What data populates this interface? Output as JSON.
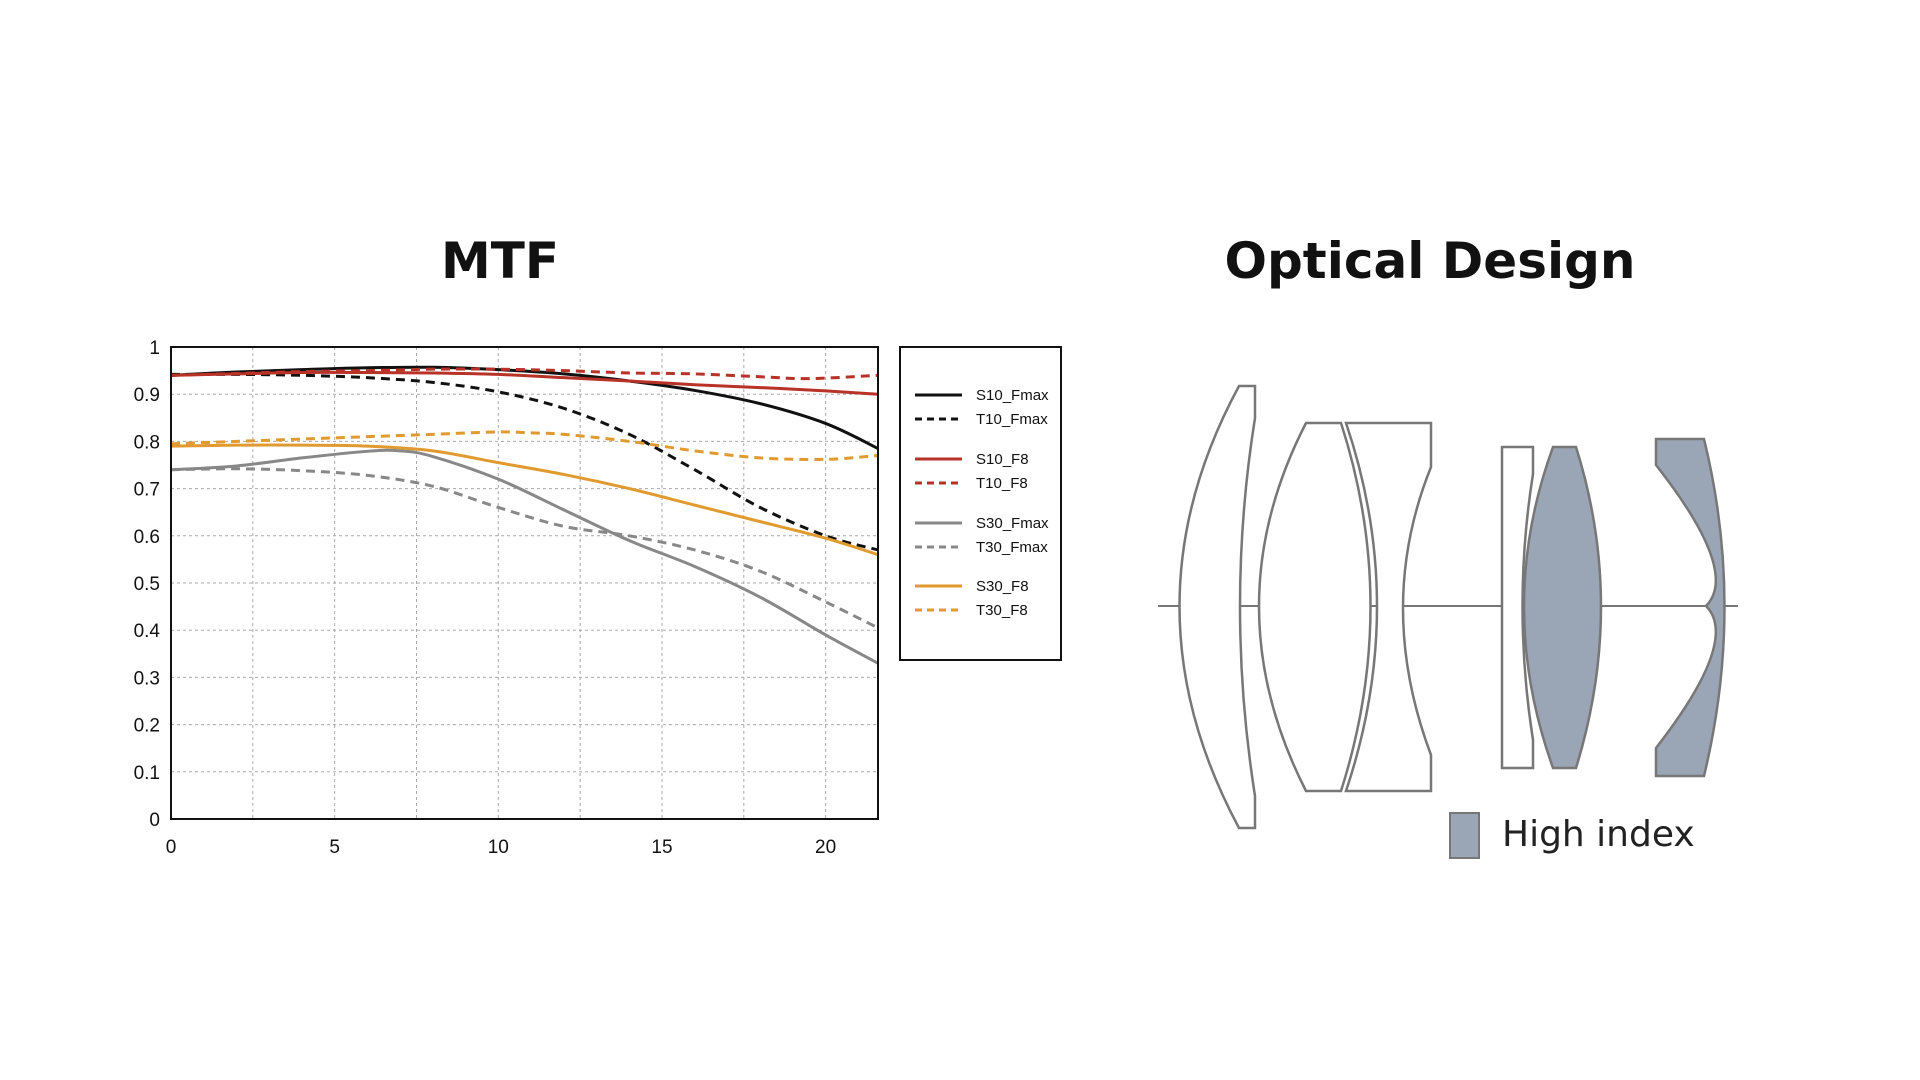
{
  "mtf": {
    "title": "MTF"
  },
  "optical": {
    "title": "Optical Design",
    "legend_label": "High index",
    "high_index_color": "#9aa5b5",
    "outline_color": "#777777"
  },
  "chart_data": {
    "type": "line",
    "title": "MTF",
    "xlabel": "",
    "ylabel": "",
    "xlim": [
      0,
      21.6
    ],
    "ylim": [
      0,
      1
    ],
    "x_ticks": [
      "0",
      "5",
      "10",
      "15",
      "20"
    ],
    "y_ticks": [
      "0",
      "0.1",
      "0.2",
      "0.3",
      "0.4",
      "0.5",
      "0.6",
      "0.7",
      "0.8",
      "0.9",
      "1"
    ],
    "grid": true,
    "legend_position": "right",
    "series": [
      {
        "name": "S10_Fmax",
        "color": "#111111",
        "dashed": false,
        "points": [
          [
            0,
            0.94
          ],
          [
            2,
            0.947
          ],
          [
            4,
            0.952
          ],
          [
            6,
            0.956
          ],
          [
            8,
            0.957
          ],
          [
            10,
            0.952
          ],
          [
            12,
            0.943
          ],
          [
            14,
            0.928
          ],
          [
            16,
            0.908
          ],
          [
            18,
            0.88
          ],
          [
            20,
            0.838
          ],
          [
            21.6,
            0.785
          ]
        ]
      },
      {
        "name": "T10_Fmax",
        "color": "#111111",
        "dashed": true,
        "points": [
          [
            0,
            0.942
          ],
          [
            2,
            0.942
          ],
          [
            4,
            0.94
          ],
          [
            6,
            0.935
          ],
          [
            8,
            0.925
          ],
          [
            10,
            0.905
          ],
          [
            12,
            0.87
          ],
          [
            14,
            0.815
          ],
          [
            16,
            0.74
          ],
          [
            18,
            0.66
          ],
          [
            20,
            0.6
          ],
          [
            21.6,
            0.57
          ]
        ]
      },
      {
        "name": "S10_F8",
        "color": "#b83228",
        "dashed": false,
        "points": [
          [
            0,
            0.94
          ],
          [
            2,
            0.943
          ],
          [
            4,
            0.946
          ],
          [
            6,
            0.946
          ],
          [
            8,
            0.945
          ],
          [
            10,
            0.942
          ],
          [
            12,
            0.935
          ],
          [
            14,
            0.928
          ],
          [
            16,
            0.92
          ],
          [
            18,
            0.914
          ],
          [
            20,
            0.907
          ],
          [
            21.6,
            0.9
          ]
        ]
      },
      {
        "name": "T10_F8",
        "color": "#b83228",
        "dashed": true,
        "points": [
          [
            0,
            0.94
          ],
          [
            2,
            0.944
          ],
          [
            4,
            0.948
          ],
          [
            6,
            0.95
          ],
          [
            8,
            0.953
          ],
          [
            10,
            0.953
          ],
          [
            12,
            0.95
          ],
          [
            14,
            0.945
          ],
          [
            16,
            0.943
          ],
          [
            18,
            0.937
          ],
          [
            19.5,
            0.933
          ],
          [
            21.6,
            0.94
          ]
        ]
      },
      {
        "name": "S30_Fmax",
        "color": "#888888",
        "dashed": false,
        "points": [
          [
            0,
            0.74
          ],
          [
            2,
            0.748
          ],
          [
            4,
            0.765
          ],
          [
            6,
            0.779
          ],
          [
            7,
            0.78
          ],
          [
            8,
            0.768
          ],
          [
            10,
            0.72
          ],
          [
            12,
            0.655
          ],
          [
            14,
            0.59
          ],
          [
            16,
            0.535
          ],
          [
            18,
            0.47
          ],
          [
            20,
            0.39
          ],
          [
            21.6,
            0.33
          ]
        ]
      },
      {
        "name": "T30_Fmax",
        "color": "#888888",
        "dashed": true,
        "points": [
          [
            0,
            0.74
          ],
          [
            2,
            0.742
          ],
          [
            4,
            0.738
          ],
          [
            6,
            0.728
          ],
          [
            8,
            0.705
          ],
          [
            10,
            0.66
          ],
          [
            12,
            0.62
          ],
          [
            14,
            0.6
          ],
          [
            16,
            0.57
          ],
          [
            18,
            0.525
          ],
          [
            20,
            0.46
          ],
          [
            21.6,
            0.405
          ]
        ]
      },
      {
        "name": "S30_F8",
        "color": "#e09a30",
        "dashed": false,
        "points": [
          [
            0,
            0.79
          ],
          [
            2,
            0.792
          ],
          [
            4,
            0.792
          ],
          [
            6,
            0.79
          ],
          [
            8,
            0.78
          ],
          [
            10,
            0.755
          ],
          [
            12,
            0.73
          ],
          [
            14,
            0.7
          ],
          [
            16,
            0.665
          ],
          [
            18,
            0.63
          ],
          [
            20,
            0.595
          ],
          [
            21.6,
            0.56
          ]
        ]
      },
      {
        "name": "T30_F8",
        "color": "#e09a30",
        "dashed": true,
        "points": [
          [
            0,
            0.795
          ],
          [
            2,
            0.8
          ],
          [
            4,
            0.805
          ],
          [
            6,
            0.81
          ],
          [
            8,
            0.815
          ],
          [
            10,
            0.82
          ],
          [
            11,
            0.818
          ],
          [
            12,
            0.815
          ],
          [
            14,
            0.8
          ],
          [
            16,
            0.78
          ],
          [
            18,
            0.765
          ],
          [
            20,
            0.762
          ],
          [
            21.6,
            0.77
          ]
        ]
      }
    ]
  }
}
